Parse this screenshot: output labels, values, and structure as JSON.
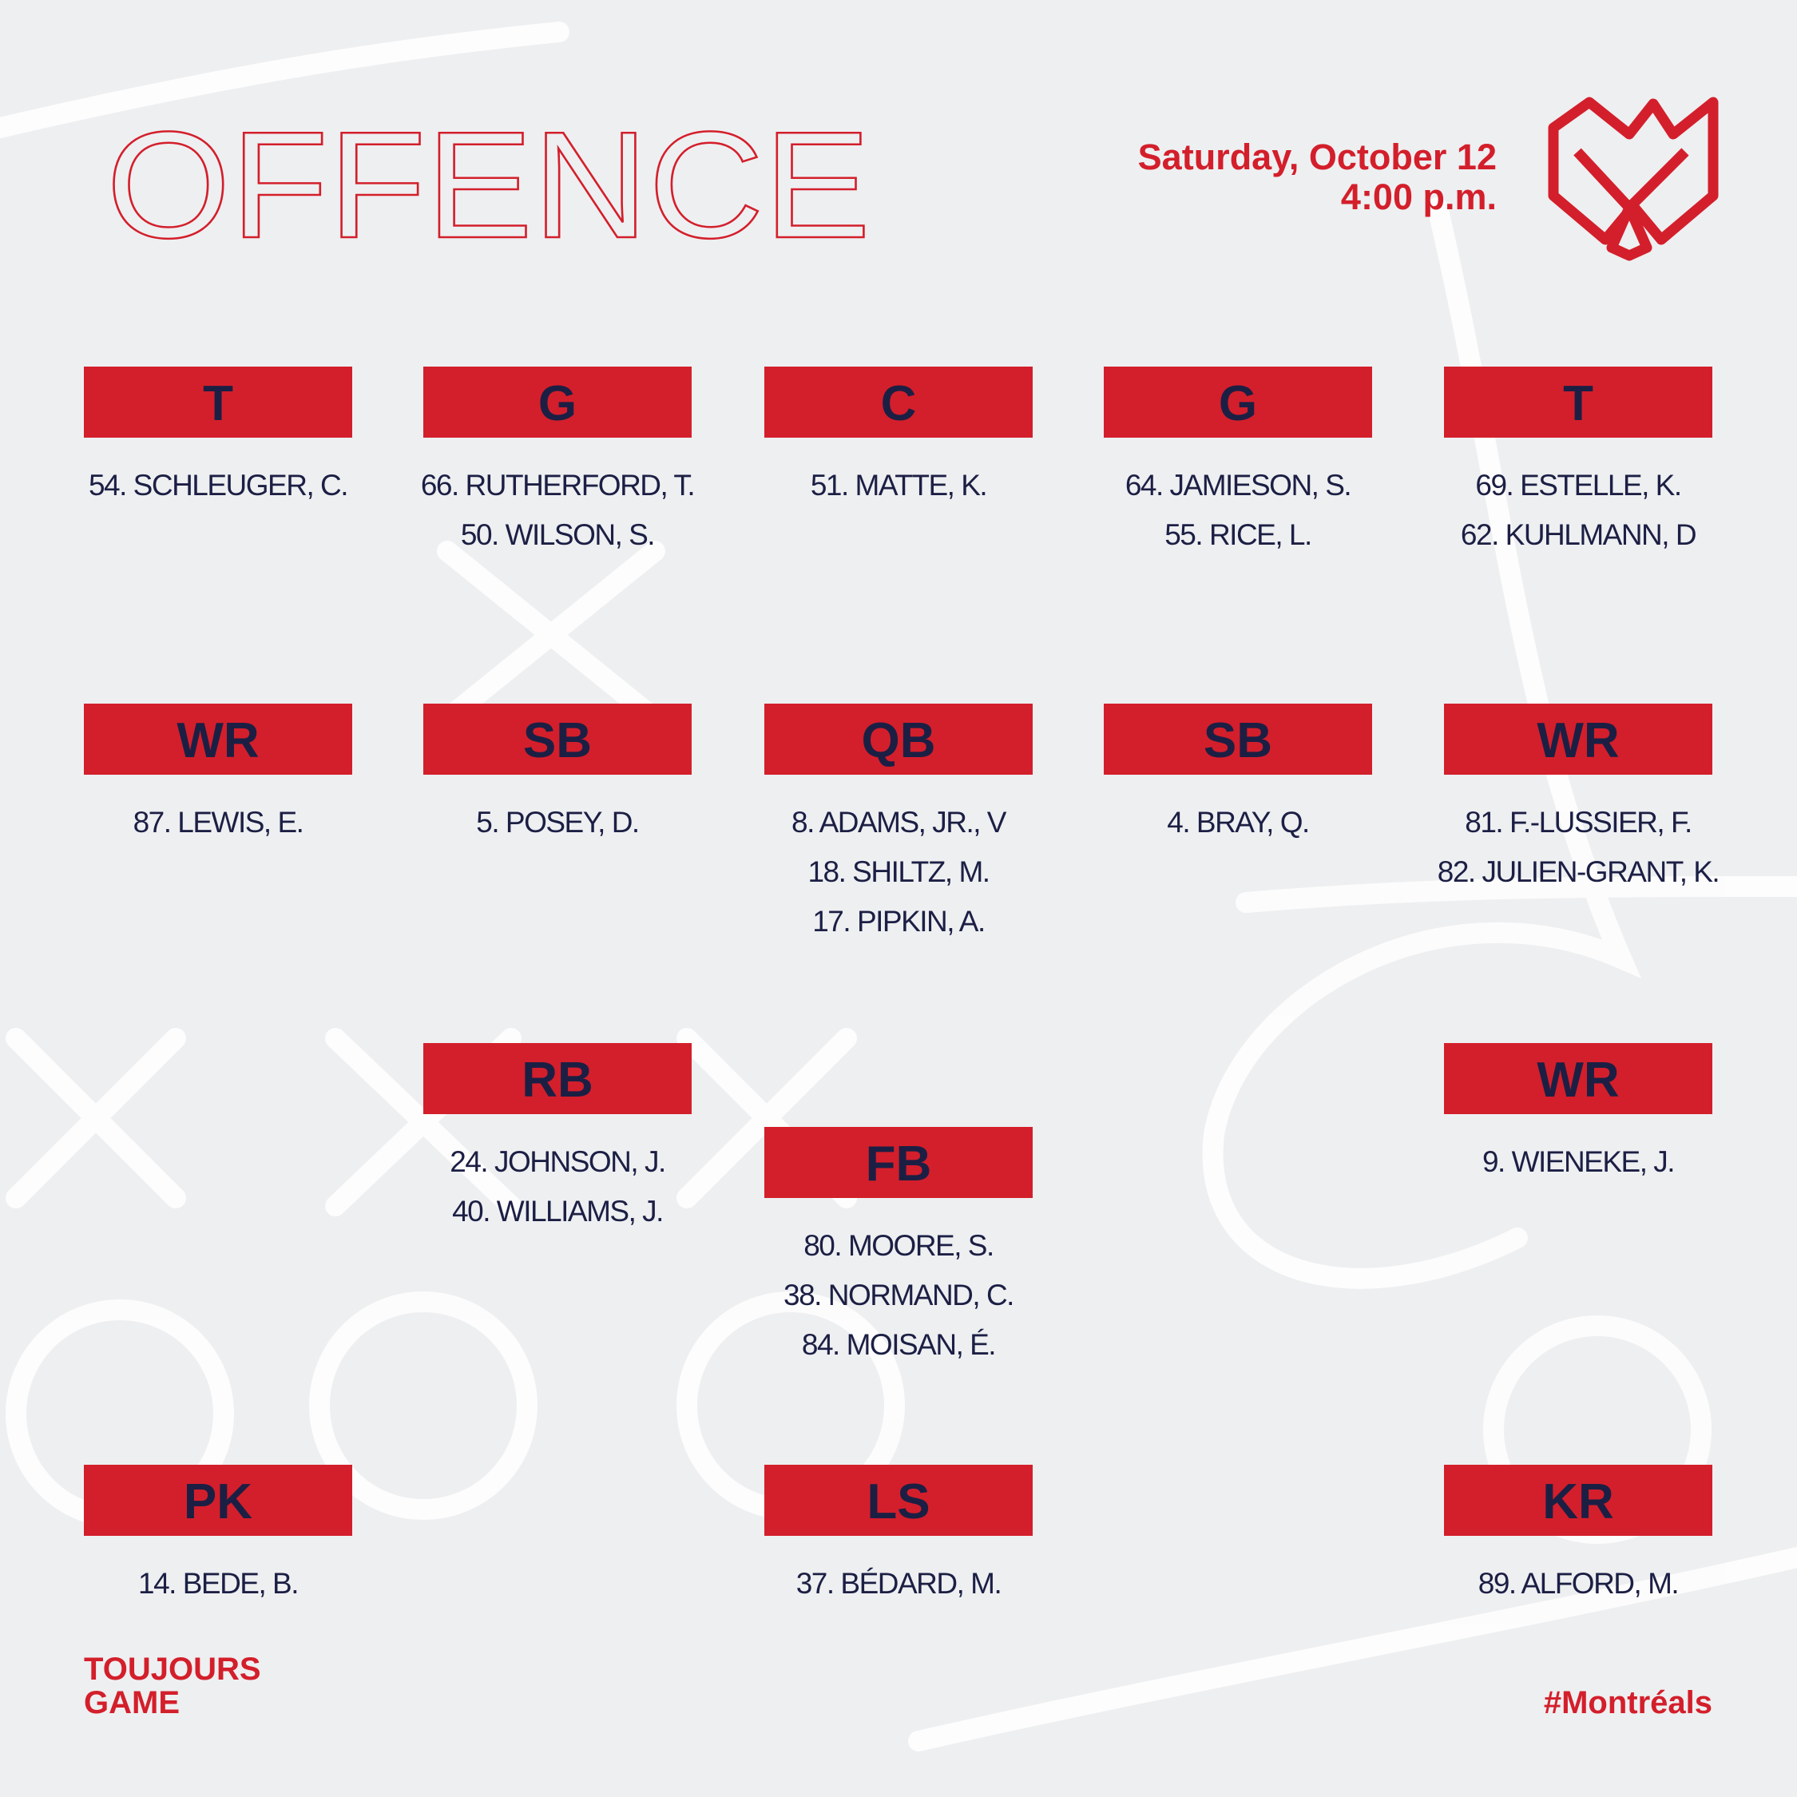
{
  "header": {
    "title": "OFFENCE",
    "date": "Saturday, October 12",
    "time": "4:00 p.m."
  },
  "positions": [
    {
      "label": "T",
      "players": [
        "54. SCHLEUGER, C."
      ]
    },
    {
      "label": "G",
      "players": [
        "66. RUTHERFORD, T.",
        "50. WILSON, S."
      ]
    },
    {
      "label": "C",
      "players": [
        "51. MATTE, K."
      ]
    },
    {
      "label": "G",
      "players": [
        "64. JAMIESON, S.",
        "55. RICE, L."
      ]
    },
    {
      "label": "T",
      "players": [
        "69. ESTELLE, K.",
        "62. KUHLMANN, D"
      ]
    },
    {
      "label": "WR",
      "players": [
        "87. LEWIS, E."
      ]
    },
    {
      "label": "SB",
      "players": [
        "5. POSEY, D."
      ]
    },
    {
      "label": "QB",
      "players": [
        "8. ADAMS, JR., V",
        "18. SHILTZ, M.",
        "17. PIPKIN, A."
      ]
    },
    {
      "label": "SB",
      "players": [
        "4. BRAY, Q."
      ]
    },
    {
      "label": "WR",
      "players": [
        "81. F.-LUSSIER, F.",
        "82. JULIEN-GRANT, K."
      ]
    },
    {
      "label": "RB",
      "players": [
        "24. JOHNSON, J.",
        "40. WILLIAMS, J."
      ]
    },
    {
      "label": "FB",
      "players": [
        "80. MOORE, S.",
        "38. NORMAND, C.",
        "84. MOISAN, É."
      ]
    },
    {
      "label": "WR",
      "players": [
        "9. WIENEKE, J."
      ]
    },
    {
      "label": "PK",
      "players": [
        "14. BEDE, B."
      ]
    },
    {
      "label": "LS",
      "players": [
        "37. BÉDARD, M."
      ]
    },
    {
      "label": "KR",
      "players": [
        "89. ALFORD, M."
      ]
    }
  ],
  "footer": {
    "tagline": [
      "TOUJOURS",
      "GAME"
    ],
    "hashtag": "#Montréals"
  }
}
